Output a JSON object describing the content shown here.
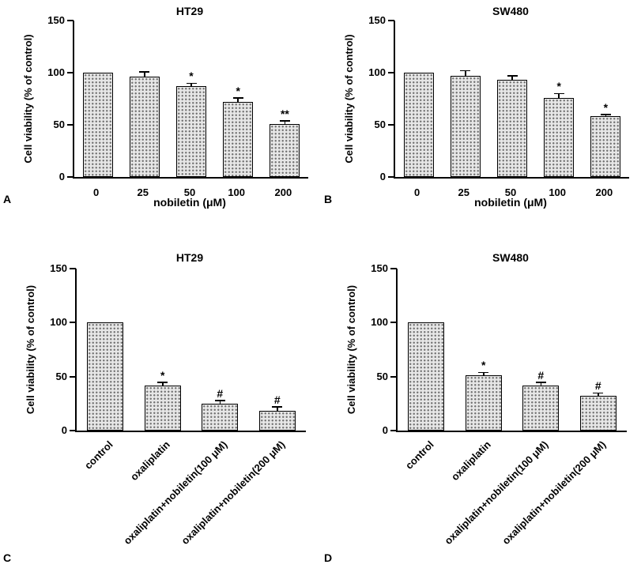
{
  "colors": {
    "axis": "#000000",
    "bar_fill": "#e6e6e6",
    "bar_dot": "#707070",
    "text": "#000000"
  },
  "chart_data": [
    {
      "panel_label": "A",
      "type": "bar",
      "title": "HT29",
      "xlabel": "nobiletin (μM)",
      "ylabel": "Cell viability (% of control)",
      "ylim": [
        0,
        150
      ],
      "yticks": [
        0,
        50,
        100,
        150
      ],
      "categories": [
        "0",
        "25",
        "50",
        "100",
        "200"
      ],
      "values": [
        100,
        96,
        87,
        72,
        51
      ],
      "errors": [
        0,
        5,
        3,
        4,
        3
      ],
      "annotations": [
        "",
        "",
        "*",
        "*",
        "**"
      ],
      "rotated_xticks": false,
      "grid": false,
      "legend": false
    },
    {
      "panel_label": "B",
      "type": "bar",
      "title": "SW480",
      "xlabel": "nobiletin (μM)",
      "ylabel": "Cell viability (% of control)",
      "ylim": [
        0,
        150
      ],
      "yticks": [
        0,
        50,
        100,
        150
      ],
      "categories": [
        "0",
        "25",
        "50",
        "100",
        "200"
      ],
      "values": [
        100,
        97,
        93,
        76,
        58
      ],
      "errors": [
        0,
        5,
        4,
        4,
        2
      ],
      "annotations": [
        "",
        "",
        "",
        "*",
        "*"
      ],
      "rotated_xticks": false,
      "grid": false,
      "legend": false
    },
    {
      "panel_label": "C",
      "type": "bar",
      "title": "HT29",
      "xlabel": "",
      "ylabel": "Cell viability (% of control)",
      "ylim": [
        0,
        150
      ],
      "yticks": [
        0,
        50,
        100,
        150
      ],
      "categories": [
        "control",
        "oxaliplatin",
        "oxaliplatin+nobiletin(100 μM)",
        "oxaliplatin+nobiletin(200 μM)"
      ],
      "values": [
        100,
        42,
        25,
        18
      ],
      "errors": [
        0,
        3,
        3,
        4
      ],
      "annotations": [
        "",
        "*",
        "#",
        "#"
      ],
      "rotated_xticks": true,
      "grid": false,
      "legend": false
    },
    {
      "panel_label": "D",
      "type": "bar",
      "title": "SW480",
      "xlabel": "",
      "ylabel": "Cell viability (% of control)",
      "ylim": [
        0,
        150
      ],
      "yticks": [
        0,
        50,
        100,
        150
      ],
      "categories": [
        "control",
        "oxaliplatin",
        "oxaliplatin+nobiletin(100 μM)",
        "oxaliplatin+nobiletin(200 μM)"
      ],
      "values": [
        100,
        51,
        42,
        32
      ],
      "errors": [
        0,
        3,
        3,
        3
      ],
      "annotations": [
        "",
        "*",
        "#",
        "#"
      ],
      "rotated_xticks": true,
      "grid": false,
      "legend": false
    }
  ]
}
